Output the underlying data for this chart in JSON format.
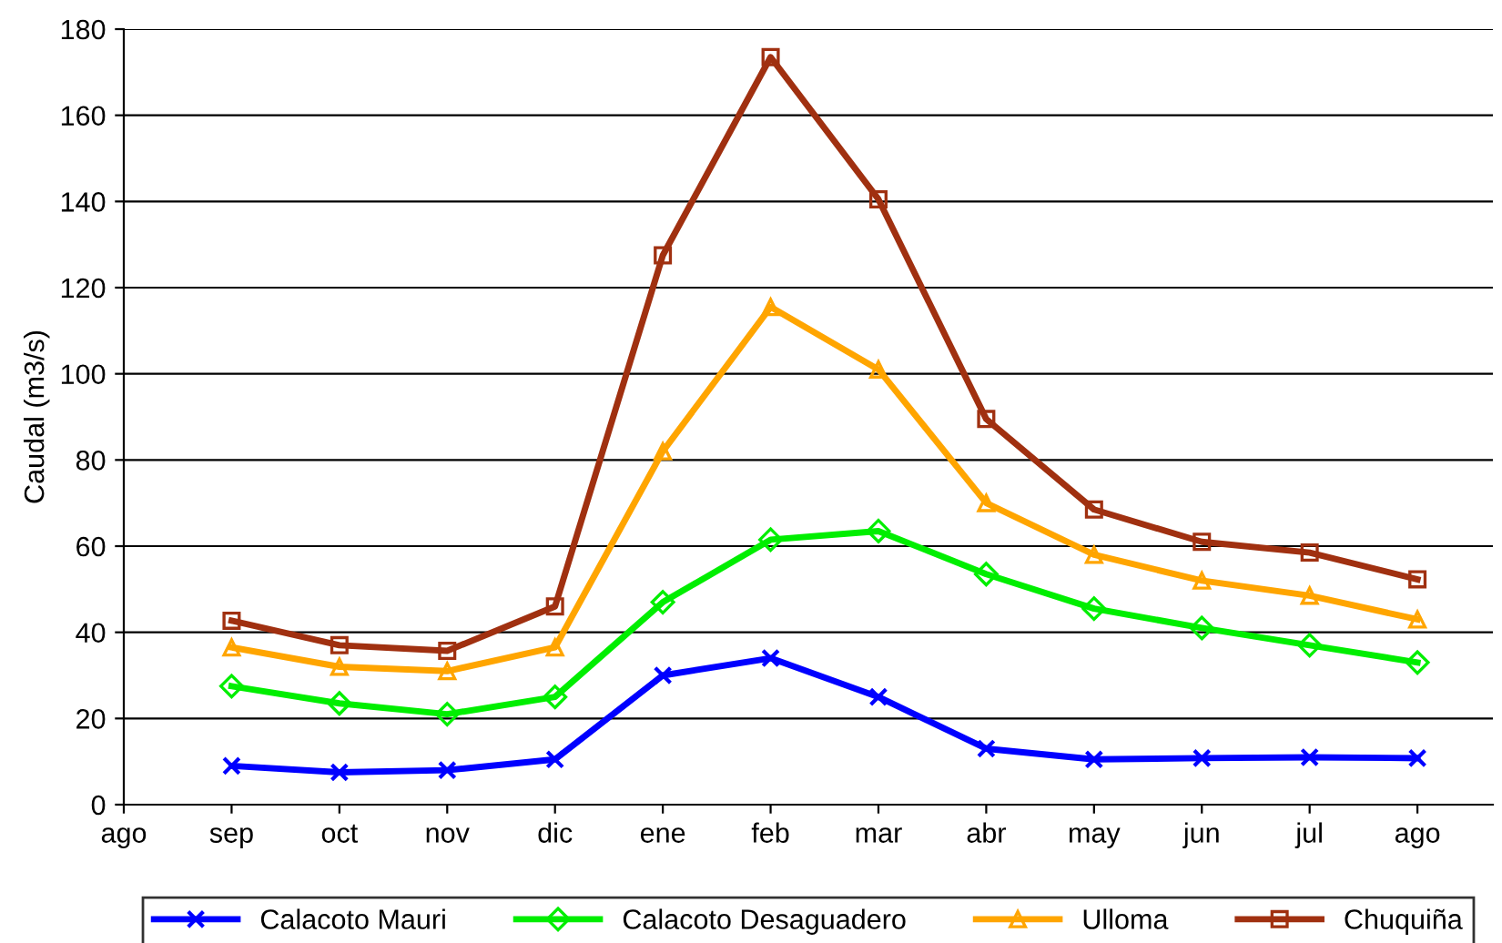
{
  "chart_data": {
    "type": "line",
    "ylabel": "Caudal (m3/s)",
    "categories": [
      "ago",
      "sep",
      "oct",
      "nov",
      "dic",
      "ene",
      "feb",
      "mar",
      "abr",
      "may",
      "jun",
      "jul",
      "ago"
    ],
    "ylim": [
      0,
      180
    ],
    "yticks": [
      0,
      20,
      40,
      60,
      80,
      100,
      120,
      140,
      160,
      180
    ],
    "grid": "y",
    "legend": "bottom",
    "line_style": "solid",
    "series": [
      {
        "name": "Calacoto Mauri",
        "color": "#0000ff",
        "marker": "cross",
        "values": [
          null,
          9,
          7.5,
          8,
          10.5,
          30,
          34,
          25,
          13,
          10.5,
          10.8,
          11,
          10.8
        ]
      },
      {
        "name": "Calacoto Desaguadero",
        "color": "#00ee00",
        "marker": "diamond",
        "values": [
          null,
          27.5,
          23.5,
          21,
          25,
          47,
          61.5,
          63.5,
          53.5,
          45.5,
          41,
          37,
          33
        ]
      },
      {
        "name": "Ulloma",
        "color": "#ffa500",
        "marker": "triangle",
        "values": [
          null,
          36.5,
          32,
          31,
          36.5,
          82,
          115.5,
          101,
          70,
          58,
          52,
          48.5,
          43
        ]
      },
      {
        "name": "Chuquiña",
        "color": "#a03010",
        "marker": "square",
        "values": [
          null,
          42.7,
          37,
          35.7,
          46,
          127.5,
          173.5,
          140.5,
          89.5,
          68.5,
          61,
          58.5,
          52.3
        ]
      }
    ]
  }
}
